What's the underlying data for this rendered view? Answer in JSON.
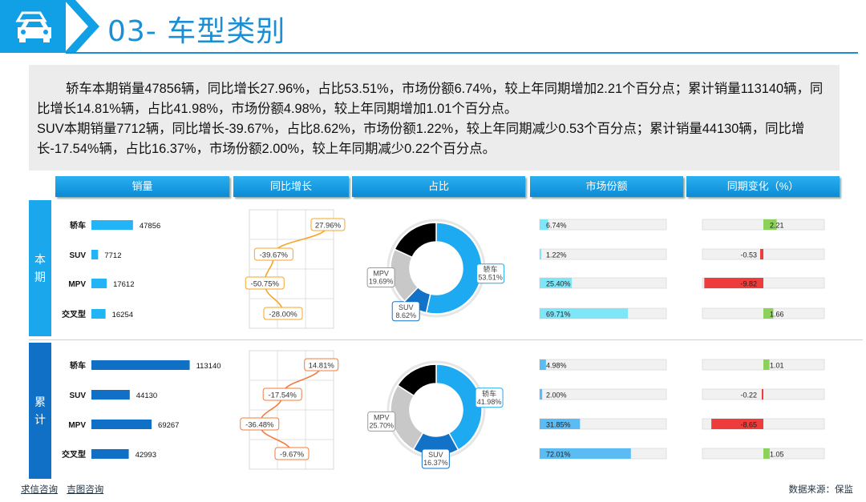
{
  "header": {
    "title": "03- 车型类别"
  },
  "summary": {
    "para1": "轿车本期销量47856辆，同比增长27.96%，占比53.51%，市场份额6.74%，较上年同期增加2.21个百分点；累计销量113140辆，同比增长14.81%辆，占比41.98%，市场份额4.98%，较上年同期增加1.01个百分点。",
    "para2": "SUV本期销量7712辆，同比增长-39.67%，占比8.62%，市场份额1.22%，较上年同期减少0.53个百分点；累计销量44130辆，同比增长-17.54%辆，占比16.37%，市场份额2.00%，较上年同期减少0.22个百分点。"
  },
  "columns": [
    "销量",
    "同比增长",
    "占比",
    "市场份额",
    "同期变化（%）"
  ],
  "sides": {
    "current": "本期",
    "cumulative": "累计"
  },
  "colors": {
    "accent": "#11a0e6",
    "bar_current": "#22b4f4",
    "bar_cumulative": "#0f70c6",
    "pie_car": "#1eaaf1",
    "pie_suv": "#1172c8",
    "pie_mpv": "#c8c8c8",
    "pie_cross": "#000000",
    "share_fill": "#7fe6f8",
    "share_fill_cum": "#5bbcf4",
    "pos": "#8bd15a",
    "neg": "#ee3b3b",
    "growth_current": "#f5a623",
    "growth_cumulative": "#f07c3c"
  },
  "chart_data": [
    {
      "type": "bar",
      "title": "销量",
      "group": "本期",
      "orientation": "horizontal",
      "categories": [
        "轿车",
        "SUV",
        "MPV",
        "交叉型"
      ],
      "values": [
        47856,
        7712,
        17612,
        16254
      ],
      "xlim": [
        0,
        120000
      ]
    },
    {
      "type": "line",
      "title": "同比增长",
      "group": "本期",
      "categories": [
        "轿车",
        "SUV",
        "MPV",
        "交叉型"
      ],
      "values": [
        27.96,
        -39.67,
        -50.75,
        -28.0
      ],
      "labels": [
        "27.96%",
        "-39.67%",
        "-50.75%",
        "-28.00%"
      ],
      "xlim": [
        -70,
        35
      ],
      "grid": true
    },
    {
      "type": "pie",
      "title": "占比",
      "group": "本期",
      "donut": true,
      "categories": [
        "轿车",
        "SUV",
        "MPV",
        "交叉型"
      ],
      "values": [
        53.51,
        8.62,
        19.69,
        18.18
      ],
      "labels": [
        "轿车\n53.51%",
        "SUV\n8.62%",
        "MPV\n19.69%",
        ""
      ]
    },
    {
      "type": "bar",
      "title": "市场份额",
      "group": "本期",
      "orientation": "horizontal",
      "categories": [
        "轿车",
        "SUV",
        "MPV",
        "交叉型"
      ],
      "values": [
        6.74,
        1.22,
        25.4,
        69.71
      ],
      "labels": [
        "6.74%",
        "1.22%",
        "25.40%",
        "69.71%"
      ],
      "xlim": [
        0,
        100
      ]
    },
    {
      "type": "bar",
      "title": "同期变化（%）",
      "group": "本期",
      "orientation": "horizontal",
      "categories": [
        "轿车",
        "SUV",
        "MPV",
        "交叉型"
      ],
      "values": [
        2.21,
        -0.53,
        -9.82,
        1.66
      ],
      "labels": [
        "2.21",
        "-0.53",
        "-9.82",
        "1.66"
      ],
      "xlim": [
        -10,
        10
      ]
    },
    {
      "type": "bar",
      "title": "销量",
      "group": "累计",
      "orientation": "horizontal",
      "categories": [
        "轿车",
        "SUV",
        "MPV",
        "交叉型"
      ],
      "values": [
        113140,
        44130,
        69267,
        42993
      ],
      "xlim": [
        0,
        120000
      ]
    },
    {
      "type": "line",
      "title": "同比增长",
      "group": "累计",
      "categories": [
        "轿车",
        "SUV",
        "MPV",
        "交叉型"
      ],
      "values": [
        14.81,
        -17.54,
        -36.48,
        -9.67
      ],
      "labels": [
        "14.81%",
        "-17.54%",
        "-36.48%",
        "-9.67%"
      ],
      "xlim": [
        -45,
        25
      ],
      "grid": true
    },
    {
      "type": "pie",
      "title": "占比",
      "group": "累计",
      "donut": true,
      "categories": [
        "轿车",
        "SUV",
        "MPV",
        "交叉型"
      ],
      "values": [
        41.98,
        16.37,
        25.7,
        15.95
      ],
      "labels": [
        "轿车\n41.98%",
        "SUV\n16.37%",
        "MPV\n25.70%",
        ""
      ]
    },
    {
      "type": "bar",
      "title": "市场份额",
      "group": "累计",
      "orientation": "horizontal",
      "categories": [
        "轿车",
        "SUV",
        "MPV",
        "交叉型"
      ],
      "values": [
        4.98,
        2.0,
        31.85,
        72.01
      ],
      "labels": [
        "4.98%",
        "2.00%",
        "31.85%",
        "72.01%"
      ],
      "xlim": [
        0,
        100
      ]
    },
    {
      "type": "bar",
      "title": "同期变化（%）",
      "group": "累计",
      "orientation": "horizontal",
      "categories": [
        "轿车",
        "SUV",
        "MPV",
        "交叉型"
      ],
      "values": [
        1.01,
        -0.22,
        -8.65,
        1.05
      ],
      "labels": [
        "1.01",
        "-0.22",
        "-8.65",
        "1.05"
      ],
      "xlim": [
        -10,
        10
      ]
    }
  ],
  "footer": {
    "link1": "求信咨询",
    "link2": "吉图咨询",
    "source": "数据来源：保监"
  }
}
